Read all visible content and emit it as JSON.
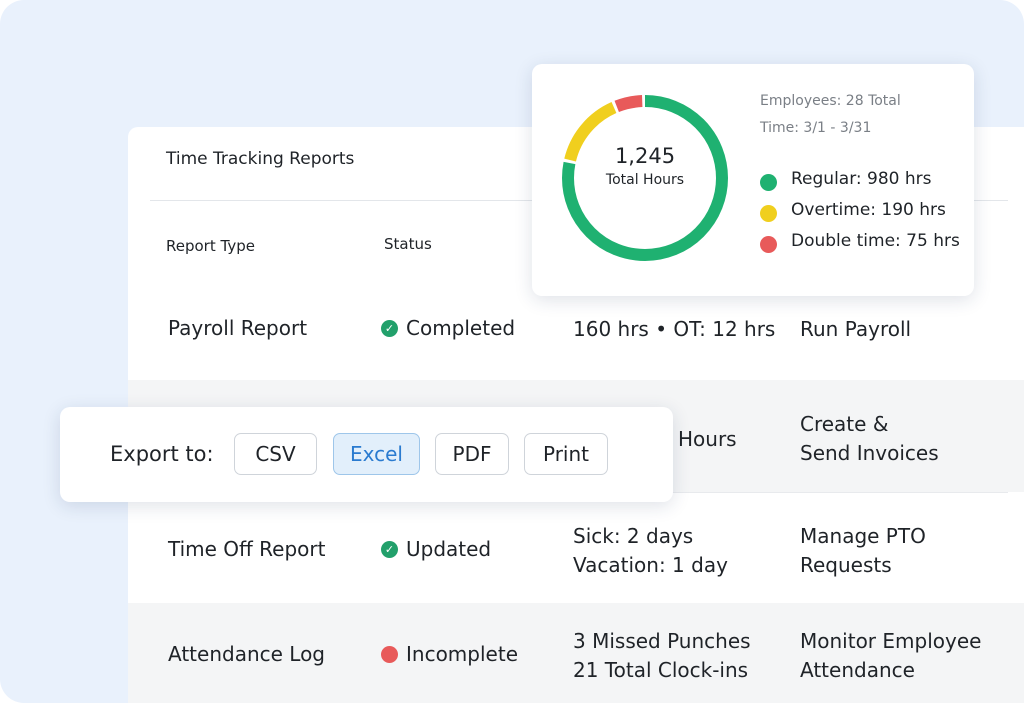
{
  "table": {
    "title": "Time Tracking Reports",
    "columns": [
      "Report Type",
      "Status"
    ],
    "rows": [
      {
        "type": "Payroll Report",
        "status": "Completed",
        "status_color": "#22a06b",
        "details": [
          "160 hrs • OT: 12 hrs"
        ],
        "action": [
          "Run Payroll"
        ]
      },
      {
        "details": [
          "Hours"
        ],
        "action": [
          "Create &",
          "Send Invoices"
        ]
      },
      {
        "type": "Time Off Report",
        "status": "Updated",
        "status_color": "#22a06b",
        "details": [
          "Sick: 2 days",
          "Vacation: 1 day"
        ],
        "action": [
          "Manage PTO",
          "Requests"
        ]
      },
      {
        "type": "Attendance Log",
        "status": "Incomplete",
        "status_color": "#e85a5a",
        "details": [
          "3 Missed Punches",
          "21 Total Clock-ins"
        ],
        "action": [
          "Monitor Employee",
          "Attendance"
        ]
      }
    ]
  },
  "summary": {
    "total": "1,245",
    "total_caption": "Total Hours",
    "employees": "Employees: 28 Total",
    "period": "Time: 3/1 - 3/31",
    "segments": [
      {
        "label": "Regular: 980 hrs",
        "value": 980,
        "color": "#1fb171"
      },
      {
        "label": "Overtime: 190 hrs",
        "value": 190,
        "color": "#f0cf1e"
      },
      {
        "label": "Double time: 75 hrs",
        "value": 75,
        "color": "#e85a5a"
      }
    ]
  },
  "export": {
    "label": "Export to:",
    "buttons": [
      {
        "text": "CSV"
      },
      {
        "text": "Excel",
        "selected": true
      },
      {
        "text": "PDF"
      },
      {
        "text": "Print"
      }
    ]
  }
}
